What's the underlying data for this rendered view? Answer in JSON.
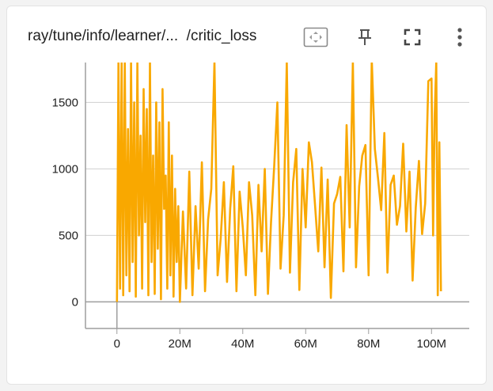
{
  "card": {
    "title_prefix": "ray/tune/info/learner/...",
    "title_suffix": "/critic_loss",
    "toolbar": {
      "fit_icon": "fit-domain-icon",
      "pin_icon": "pin-icon",
      "fullscreen_icon": "fullscreen-icon",
      "more_icon": "more-vert-icon"
    }
  },
  "chart_data": {
    "type": "line",
    "title": "",
    "xlabel": "",
    "ylabel": "",
    "xlim": [
      -10000000,
      112000000
    ],
    "ylim": [
      -200,
      1800
    ],
    "x_ticks": [
      0,
      20000000,
      40000000,
      60000000,
      80000000,
      100000000
    ],
    "x_tick_labels": [
      "0",
      "20M",
      "40M",
      "60M",
      "80M",
      "100M"
    ],
    "y_ticks": [
      0,
      500,
      1000,
      1500
    ],
    "y_tick_labels": [
      "0",
      "500",
      "1000",
      "1500"
    ],
    "grid": true,
    "color": "#f9a800",
    "series": [
      {
        "name": "",
        "x": [
          0,
          500000,
          1000000,
          1500000,
          2000000,
          2500000,
          3000000,
          3500000,
          4000000,
          4500000,
          5000000,
          5500000,
          6000000,
          6500000,
          7000000,
          7500000,
          8000000,
          8500000,
          9000000,
          9500000,
          10000000,
          10500000,
          11000000,
          11500000,
          12000000,
          12500000,
          13000000,
          13500000,
          14000000,
          14500000,
          15000000,
          15500000,
          16000000,
          16500000,
          17000000,
          17500000,
          18000000,
          18500000,
          19000000,
          19500000,
          20000000,
          21000000,
          22000000,
          23000000,
          24000000,
          25000000,
          26000000,
          27000000,
          28000000,
          29000000,
          30000000,
          31000000,
          32000000,
          33000000,
          34000000,
          35000000,
          36000000,
          37000000,
          38000000,
          39000000,
          40000000,
          41000000,
          42000000,
          43000000,
          44000000,
          45000000,
          46000000,
          47000000,
          48000000,
          49000000,
          50000000,
          51000000,
          52000000,
          53000000,
          54000000,
          55000000,
          56000000,
          57000000,
          58000000,
          59000000,
          60000000,
          61000000,
          62000000,
          63000000,
          64000000,
          65000000,
          66000000,
          67000000,
          68000000,
          69000000,
          70000000,
          71000000,
          72000000,
          73000000,
          74000000,
          75000000,
          76000000,
          77000000,
          78000000,
          79000000,
          80000000,
          81000000,
          82000000,
          83000000,
          84000000,
          85000000,
          86000000,
          87000000,
          88000000,
          89000000,
          90000000,
          91000000,
          92000000,
          93000000,
          94000000,
          95000000,
          96000000,
          97000000,
          98000000,
          99000000,
          100000000,
          100500000,
          101000000,
          101500000,
          102000000,
          102500000,
          103000000
        ],
        "y": [
          0,
          1800,
          100,
          1800,
          50,
          1800,
          200,
          1300,
          80,
          1800,
          300,
          1500,
          40,
          1800,
          500,
          1250,
          100,
          1600,
          600,
          1450,
          50,
          1800,
          300,
          1100,
          60,
          1500,
          400,
          1350,
          20,
          1600,
          700,
          950,
          100,
          1350,
          200,
          1100,
          40,
          850,
          300,
          720,
          0,
          680,
          100,
          980,
          50,
          720,
          250,
          1050,
          80,
          620,
          850,
          1800,
          200,
          480,
          900,
          150,
          700,
          1020,
          80,
          830,
          560,
          200,
          900,
          650,
          50,
          880,
          380,
          1000,
          60,
          600,
          1020,
          1500,
          250,
          650,
          1800,
          220,
          900,
          1150,
          90,
          1000,
          560,
          1200,
          1050,
          720,
          380,
          1010,
          260,
          920,
          30,
          740,
          810,
          940,
          230,
          1330,
          560,
          1800,
          260,
          870,
          1100,
          1180,
          200,
          1820,
          1150,
          930,
          690,
          1270,
          220,
          880,
          950,
          580,
          720,
          1190,
          530,
          980,
          160,
          710,
          1060,
          510,
          740,
          1660,
          1680,
          500,
          1400,
          1800,
          50,
          1200,
          80
        ]
      }
    ]
  }
}
